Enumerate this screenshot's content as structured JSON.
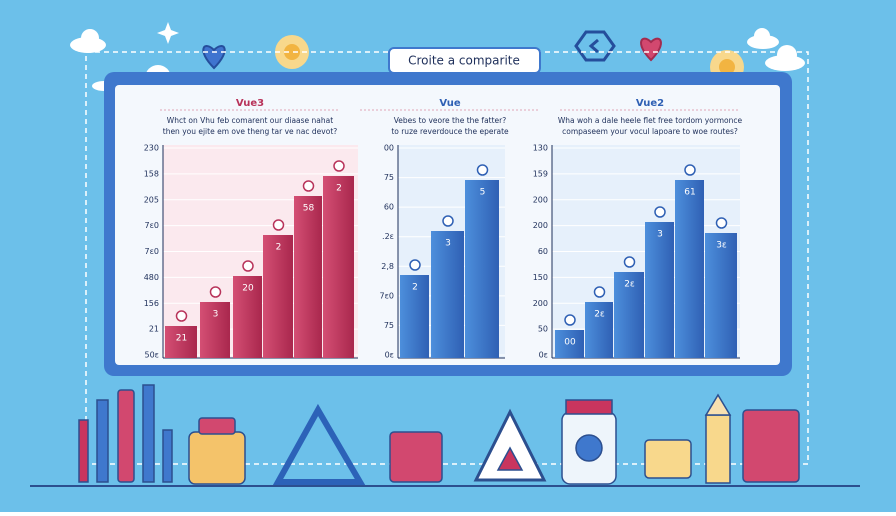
{
  "header": {
    "title": "Croite a comparite"
  },
  "panels": [
    {
      "title": "Vue3",
      "subtitle_lines": [
        "Whct on Vhu feb comarent our diaase nahat",
        "then you ejite em ove theng tar ve nac devot?"
      ],
      "axis_labels": [
        "230",
        "158",
        "205",
        "7ε0",
        "7ε0",
        "480",
        "156",
        "21",
        "50ε"
      ],
      "bar_labels": [
        "21",
        "3",
        "20",
        "2",
        "58",
        "2"
      ]
    },
    {
      "title": "Vue",
      "subtitle_lines": [
        "Vebes to veore the the fatter?",
        "to ruze reverdouce the eperate"
      ],
      "axis_labels": [
        "00",
        "75",
        "60",
        ".2ε",
        "2,8",
        "7ε0",
        "75",
        "0ε"
      ],
      "bar_labels": [
        "2",
        "3",
        "5"
      ]
    },
    {
      "title": "Vue2",
      "subtitle_lines": [
        "Wha woh a dale heele flet free tordom yormonce",
        "compaseem your vocul lapoare to woe routes?"
      ],
      "axis_labels": [
        "130",
        "159",
        "200",
        "200",
        "60",
        "150",
        "200",
        "50",
        "0ε"
      ],
      "bar_labels": [
        "00",
        "2ε",
        "2ε",
        "3",
        "61",
        "3ε"
      ]
    }
  ]
}
